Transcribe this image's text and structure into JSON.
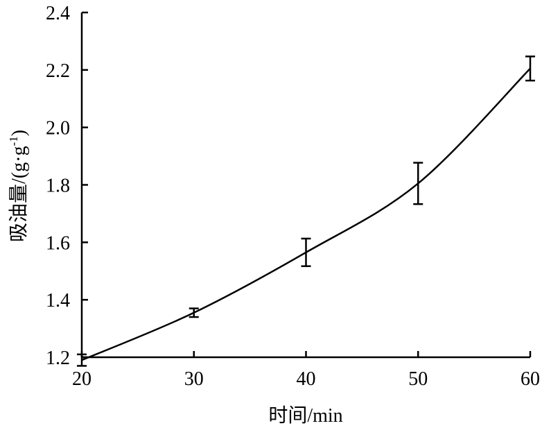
{
  "chart_data": {
    "type": "line",
    "x": [
      20,
      30,
      40,
      50,
      60
    ],
    "series": [
      {
        "values": [
          1.19,
          1.355,
          1.565,
          1.805,
          2.205
        ],
        "error": [
          0.02,
          0.015,
          0.048,
          0.072,
          0.042
        ]
      }
    ],
    "xlabel": "时间/min",
    "ylabel": "吸油量/(g·g",
    "ylabel_superscript": "-1",
    "ylabel_close": ")",
    "xlim": [
      20,
      60
    ],
    "ylim": [
      1.2,
      2.4
    ],
    "xticks": [
      "20",
      "30",
      "40",
      "50",
      "60"
    ],
    "yticks": [
      "1.2",
      "1.4",
      "1.6",
      "1.8",
      "2.0",
      "2.2",
      "2.4"
    ],
    "grid": false,
    "line_color": "#000000"
  }
}
